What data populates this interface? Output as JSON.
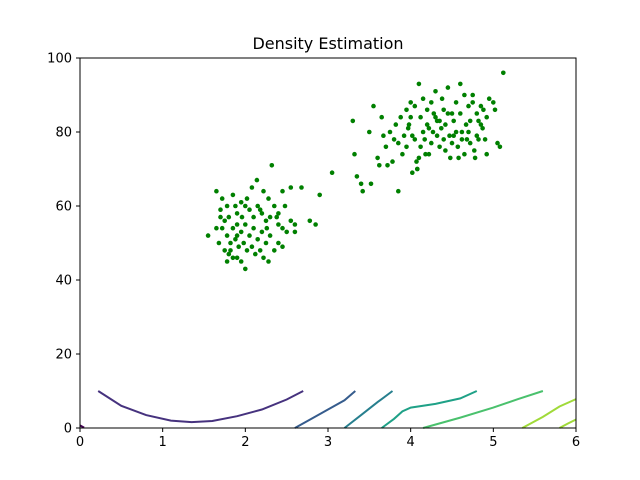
{
  "chart_data": {
    "type": "scatter",
    "title": "Density Estimation",
    "xlabel": "",
    "ylabel": "",
    "xlim": [
      0,
      6
    ],
    "ylim": [
      0,
      100
    ],
    "x_ticks": [
      "0",
      "1",
      "2",
      "3",
      "4",
      "5",
      "6"
    ],
    "y_ticks": [
      "0",
      "20",
      "40",
      "60",
      "80",
      "100"
    ],
    "grid": false,
    "legend": "none",
    "colors": {
      "points": "#008000",
      "contours": [
        "#440154",
        "#46327e",
        "#365c8d",
        "#277f8e",
        "#1fa187",
        "#4ac16d",
        "#a0da39"
      ]
    },
    "series": [
      {
        "kind": "scatter",
        "points": [
          [
            1.65,
            64
          ],
          [
            1.72,
            62
          ],
          [
            1.78,
            60
          ],
          [
            1.85,
            63
          ],
          [
            1.9,
            58
          ],
          [
            1.95,
            61
          ],
          [
            2.0,
            60
          ],
          [
            2.05,
            59
          ],
          [
            2.1,
            57
          ],
          [
            2.15,
            60
          ],
          [
            2.2,
            58
          ],
          [
            2.25,
            56
          ],
          [
            2.3,
            57
          ],
          [
            2.35,
            60
          ],
          [
            2.4,
            55
          ],
          [
            2.45,
            54
          ],
          [
            2.5,
            53
          ],
          [
            2.55,
            56
          ],
          [
            2.6,
            53
          ],
          [
            1.7,
            59
          ],
          [
            1.75,
            56
          ],
          [
            1.8,
            57
          ],
          [
            1.85,
            54
          ],
          [
            1.9,
            55
          ],
          [
            1.95,
            53
          ],
          [
            2.0,
            55
          ],
          [
            2.05,
            52
          ],
          [
            2.1,
            54
          ],
          [
            2.15,
            51
          ],
          [
            2.2,
            53
          ],
          [
            2.25,
            50
          ],
          [
            2.3,
            52
          ],
          [
            2.35,
            48
          ],
          [
            2.4,
            50
          ],
          [
            2.45,
            49
          ],
          [
            1.72,
            54
          ],
          [
            1.78,
            52
          ],
          [
            1.82,
            50
          ],
          [
            1.88,
            51
          ],
          [
            1.92,
            49
          ],
          [
            1.98,
            50
          ],
          [
            2.02,
            48
          ],
          [
            2.08,
            49
          ],
          [
            2.12,
            47
          ],
          [
            2.18,
            48
          ],
          [
            2.22,
            46
          ],
          [
            2.28,
            45
          ],
          [
            1.75,
            48
          ],
          [
            1.8,
            47
          ],
          [
            1.85,
            46
          ],
          [
            1.9,
            46
          ],
          [
            1.95,
            45
          ],
          [
            2.0,
            43
          ],
          [
            1.78,
            45
          ],
          [
            1.82,
            48
          ],
          [
            1.9,
            52
          ],
          [
            1.96,
            57
          ],
          [
            2.02,
            62
          ],
          [
            2.08,
            65
          ],
          [
            2.14,
            67
          ],
          [
            2.22,
            64
          ],
          [
            2.28,
            62
          ],
          [
            2.32,
            71
          ],
          [
            2.45,
            64
          ],
          [
            2.55,
            65
          ],
          [
            2.68,
            65
          ],
          [
            2.48,
            60
          ],
          [
            2.38,
            57
          ],
          [
            1.55,
            52
          ],
          [
            1.65,
            54
          ],
          [
            1.7,
            57
          ],
          [
            1.68,
            50
          ],
          [
            1.88,
            60
          ],
          [
            2.18,
            59
          ],
          [
            2.26,
            54
          ],
          [
            2.4,
            58
          ],
          [
            2.6,
            55
          ],
          [
            2.78,
            56
          ],
          [
            2.85,
            55
          ],
          [
            2.9,
            63
          ],
          [
            3.05,
            69
          ],
          [
            3.3,
            83
          ],
          [
            3.32,
            74
          ],
          [
            3.35,
            68
          ],
          [
            3.4,
            66
          ],
          [
            3.42,
            64
          ],
          [
            3.5,
            80
          ],
          [
            3.52,
            66
          ],
          [
            3.55,
            87
          ],
          [
            3.6,
            73
          ],
          [
            3.62,
            71
          ],
          [
            3.65,
            84
          ],
          [
            3.67,
            79
          ],
          [
            3.7,
            76
          ],
          [
            3.72,
            71
          ],
          [
            3.75,
            80
          ],
          [
            3.78,
            72
          ],
          [
            3.8,
            78
          ],
          [
            3.82,
            82
          ],
          [
            3.85,
            77
          ],
          [
            3.85,
            64
          ],
          [
            3.88,
            84
          ],
          [
            3.9,
            74
          ],
          [
            3.92,
            79
          ],
          [
            3.95,
            76
          ],
          [
            3.97,
            81
          ],
          [
            4.0,
            84
          ],
          [
            4.02,
            79
          ],
          [
            4.05,
            78
          ],
          [
            4.07,
            72
          ],
          [
            4.08,
            70
          ],
          [
            4.1,
            73
          ],
          [
            4.12,
            76
          ],
          [
            4.15,
            80
          ],
          [
            4.17,
            78
          ],
          [
            4.2,
            82
          ],
          [
            4.22,
            74
          ],
          [
            4.25,
            77
          ],
          [
            4.27,
            80
          ],
          [
            4.3,
            84
          ],
          [
            4.32,
            79
          ],
          [
            4.35,
            76
          ],
          [
            4.37,
            81
          ],
          [
            4.4,
            78
          ],
          [
            4.42,
            82
          ],
          [
            4.45,
            85
          ],
          [
            4.47,
            79
          ],
          [
            4.5,
            77
          ],
          [
            4.52,
            83
          ],
          [
            4.55,
            80
          ],
          [
            4.57,
            76
          ],
          [
            4.6,
            85
          ],
          [
            4.62,
            78
          ],
          [
            4.65,
            74
          ],
          [
            4.67,
            82
          ],
          [
            4.7,
            80
          ],
          [
            4.72,
            77
          ],
          [
            4.75,
            88
          ],
          [
            4.77,
            75
          ],
          [
            4.8,
            79
          ],
          [
            4.82,
            83
          ],
          [
            4.85,
            87
          ],
          [
            4.87,
            81
          ],
          [
            4.9,
            78
          ],
          [
            4.92,
            84
          ],
          [
            4.95,
            89
          ],
          [
            5.0,
            88
          ],
          [
            5.02,
            86
          ],
          [
            5.05,
            77
          ],
          [
            5.08,
            76
          ],
          [
            5.12,
            96
          ],
          [
            4.05,
            87
          ],
          [
            4.1,
            93
          ],
          [
            4.15,
            89
          ],
          [
            4.2,
            86
          ],
          [
            4.25,
            88
          ],
          [
            4.3,
            91
          ],
          [
            4.35,
            83
          ],
          [
            4.4,
            86
          ],
          [
            4.45,
            92
          ],
          [
            4.5,
            85
          ],
          [
            4.55,
            88
          ],
          [
            4.6,
            93
          ],
          [
            4.65,
            90
          ],
          [
            4.7,
            87
          ],
          [
            4.75,
            90
          ],
          [
            4.8,
            85
          ],
          [
            4.85,
            82
          ],
          [
            4.0,
            88
          ],
          [
            3.98,
            82
          ],
          [
            3.95,
            86
          ],
          [
            4.12,
            84
          ],
          [
            4.28,
            85
          ],
          [
            4.38,
            89
          ],
          [
            4.48,
            73
          ],
          [
            4.58,
            73
          ],
          [
            4.68,
            78
          ],
          [
            4.78,
            73
          ],
          [
            4.88,
            86
          ],
          [
            4.92,
            74
          ],
          [
            4.02,
            69
          ],
          [
            4.08,
            70
          ],
          [
            4.18,
            74
          ],
          [
            4.22,
            81
          ],
          [
            4.32,
            83
          ],
          [
            4.42,
            75
          ],
          [
            4.52,
            79
          ],
          [
            4.62,
            80
          ],
          [
            4.72,
            83
          ],
          [
            4.82,
            78
          ]
        ]
      }
    ],
    "contours": [
      {
        "points": [
          [
            0.0,
            0.7
          ],
          [
            0.05,
            0.1
          ]
        ]
      },
      {
        "points": [
          [
            0.22,
            10
          ],
          [
            0.5,
            6
          ],
          [
            0.8,
            3.5
          ],
          [
            1.1,
            2.0
          ],
          [
            1.35,
            1.6
          ],
          [
            1.6,
            1.9
          ],
          [
            1.9,
            3.2
          ],
          [
            2.2,
            5.0
          ],
          [
            2.5,
            7.7
          ],
          [
            2.7,
            10
          ]
        ]
      },
      {
        "points": [
          [
            2.6,
            0
          ],
          [
            2.8,
            2.5
          ],
          [
            3.0,
            5.0
          ],
          [
            3.2,
            7.5
          ],
          [
            3.33,
            10
          ]
        ]
      },
      {
        "points": [
          [
            3.2,
            0
          ],
          [
            3.4,
            3.5
          ],
          [
            3.6,
            7.0
          ],
          [
            3.78,
            10
          ]
        ]
      },
      {
        "points": [
          [
            3.65,
            0
          ],
          [
            3.8,
            2.5
          ],
          [
            3.9,
            4.5
          ],
          [
            4.0,
            5.5
          ],
          [
            4.3,
            6.5
          ],
          [
            4.6,
            8.0
          ],
          [
            4.8,
            10
          ]
        ]
      },
      {
        "points": [
          [
            4.15,
            0
          ],
          [
            4.6,
            2.8
          ],
          [
            5.0,
            5.5
          ],
          [
            5.3,
            7.8
          ],
          [
            5.6,
            10
          ]
        ]
      },
      {
        "points": [
          [
            5.35,
            0
          ],
          [
            5.6,
            3.0
          ],
          [
            5.8,
            5.8
          ],
          [
            6.0,
            7.8
          ]
        ]
      },
      {
        "points": [
          [
            5.8,
            0
          ],
          [
            5.9,
            1.2
          ],
          [
            6.0,
            2.3
          ]
        ]
      }
    ]
  }
}
